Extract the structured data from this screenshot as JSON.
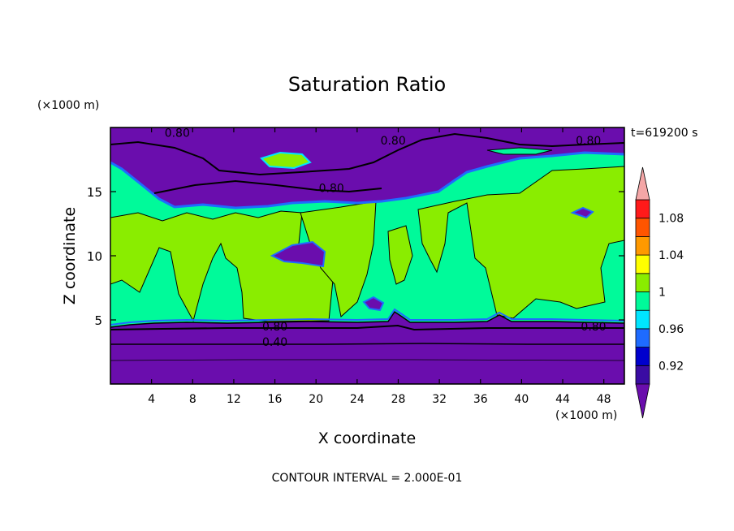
{
  "chart_data": {
    "type": "heatmap",
    "title": "Saturation Ratio",
    "xlabel": "X coordinate",
    "ylabel": "Z coordinate",
    "x_unit": "(×1000 m)",
    "y_unit": "(×1000 m)",
    "time_label": "t=619200 s",
    "footer": "CONTOUR INTERVAL = 2.000E-01",
    "xlim": [
      0,
      50
    ],
    "ylim": [
      0,
      20
    ],
    "x_ticks": [
      4,
      8,
      12,
      16,
      20,
      24,
      28,
      32,
      36,
      40,
      44,
      48
    ],
    "x_tick_labels": [
      "4",
      "8",
      "12",
      "16",
      "20",
      "24",
      "28",
      "32",
      "36",
      "40",
      "44",
      "48"
    ],
    "y_ticks": [
      5,
      10,
      15
    ],
    "y_tick_labels": [
      "5",
      "10",
      "15"
    ],
    "colorbar": {
      "levels": [
        0.9,
        0.92,
        0.94,
        0.96,
        0.98,
        1.0,
        1.02,
        1.04,
        1.06,
        1.08,
        1.1
      ],
      "labeled_levels": [
        0.92,
        0.96,
        1.0,
        1.04,
        1.08
      ],
      "labels": [
        "0.92",
        "0.96",
        "1",
        "1.04",
        "1.08"
      ],
      "colors": {
        "below": "#6a0dad",
        "bands": [
          "#3a0ca3",
          "#0000cd",
          "#1e6bff",
          "#00e5ff",
          "#00fa9a",
          "#8aed00",
          "#ffff00",
          "#ff9900",
          "#ff5500",
          "#ff1a1a"
        ],
        "above": "#f4a6a6"
      }
    },
    "contour_labels": [
      {
        "text": "0.80",
        "x": 6.5,
        "z": 19.6
      },
      {
        "text": "0.80",
        "x": 27.5,
        "z": 19.0
      },
      {
        "text": "0.80",
        "x": 46.5,
        "z": 19.0
      },
      {
        "text": "0.80",
        "x": 21.5,
        "z": 15.3
      },
      {
        "text": "0.80",
        "x": 16.0,
        "z": 4.5
      },
      {
        "text": "0.40",
        "x": 16.0,
        "z": 3.3
      },
      {
        "text": "0.80",
        "x": 47.0,
        "z": 4.5
      }
    ]
  }
}
